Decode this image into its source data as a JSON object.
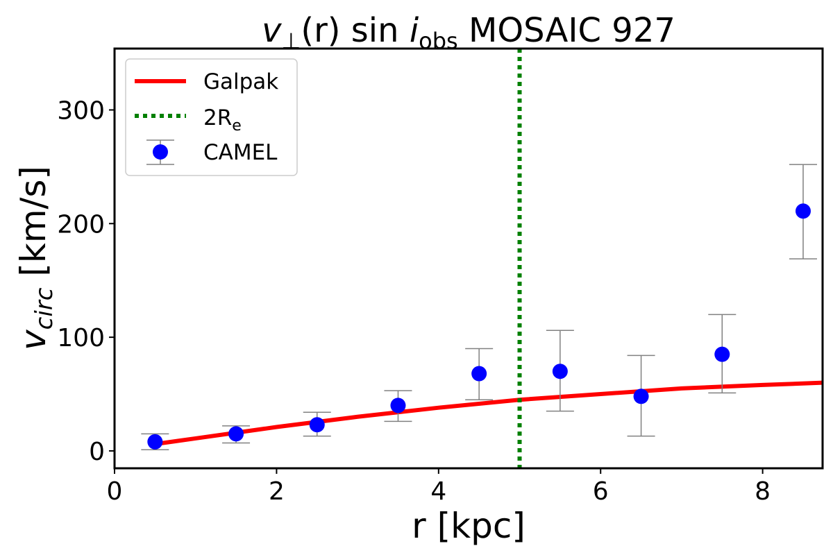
{
  "chart_data": {
    "type": "scatter",
    "title": "v⊥(r) sin i_obs MOSAIC 927",
    "title_parts": {
      "main": "v",
      "sub_perp": "⊥",
      "mid": "(r) sin ",
      "i": "i",
      "sub": "obs",
      "tail": " MOSAIC 927"
    },
    "xlabel": "r [kpc]",
    "ylabel": "v_circ [km/s]",
    "ylabel_parts": {
      "main": "v",
      "sub": "circ",
      "unit": " [km/s]"
    },
    "xlim": [
      0,
      8.74
    ],
    "ylim": [
      -15.3,
      354
    ],
    "xticks": [
      0,
      2,
      4,
      6,
      8
    ],
    "yticks": [
      0,
      100,
      200,
      300
    ],
    "grid": false,
    "legend_position": "top-left",
    "legend": [
      {
        "label": "Galpak"
      },
      {
        "label": "2R",
        "sub": "e"
      },
      {
        "label": "CAMEL"
      }
    ],
    "colors": {
      "galpak": "#ff0000",
      "re": "#008000",
      "camel": "#0000ff",
      "errorbar": "#808080"
    },
    "series": [
      {
        "name": "Galpak",
        "type": "line",
        "x": [
          0.5,
          1,
          2,
          3,
          4,
          5,
          6,
          7,
          8,
          8.74
        ],
        "y": [
          6,
          11,
          21,
          30,
          38,
          45,
          50,
          55,
          58,
          60
        ]
      },
      {
        "name": "CAMEL",
        "type": "scatter",
        "x": [
          0.5,
          1.5,
          2.5,
          3.5,
          4.5,
          5.5,
          6.5,
          7.5,
          8.5
        ],
        "y": [
          8,
          15,
          23,
          40,
          68,
          70,
          48,
          85,
          211
        ],
        "err_low": [
          1,
          7,
          13,
          26,
          45,
          35,
          13,
          51,
          169
        ],
        "err_high": [
          15,
          22,
          34,
          53,
          90,
          106,
          84,
          120,
          252
        ]
      }
    ],
    "vline": {
      "name": "2R_e",
      "x": 5
    }
  }
}
